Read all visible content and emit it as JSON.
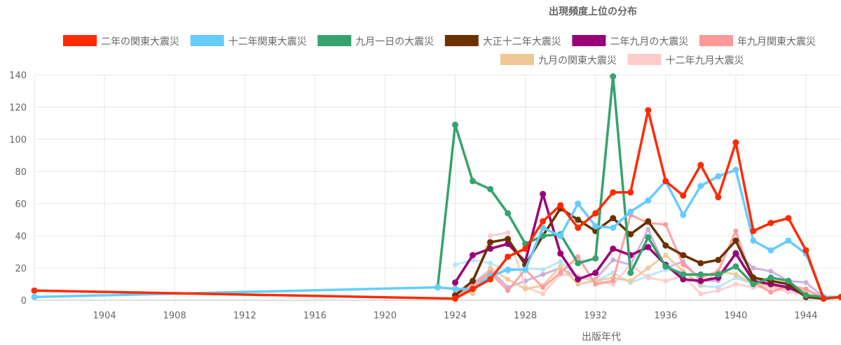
{
  "chart_data": {
    "type": "line",
    "title": "出現頻度上位の分布",
    "xlabel": "出版年代",
    "ylabel": "",
    "xlim": [
      1900,
      1946
    ],
    "ylim": [
      0,
      140
    ],
    "y_ticks": [
      0,
      20,
      40,
      60,
      80,
      100,
      120,
      140
    ],
    "x_ticks": [
      1904,
      1908,
      1912,
      1916,
      1920,
      1924,
      1928,
      1932,
      1936,
      1940,
      1944
    ],
    "grid": true,
    "legend_position": "top",
    "series": [
      {
        "name": "二年の関東大震災",
        "color": "#ff2a00",
        "points": [
          [
            1900,
            6
          ],
          [
            1924,
            1
          ],
          [
            1925,
            7
          ],
          [
            1926,
            13
          ],
          [
            1927,
            27
          ],
          [
            1928,
            32
          ],
          [
            1929,
            49
          ],
          [
            1930,
            59
          ],
          [
            1931,
            45
          ],
          [
            1932,
            54
          ],
          [
            1933,
            67
          ],
          [
            1934,
            67
          ],
          [
            1935,
            118
          ],
          [
            1936,
            74
          ],
          [
            1937,
            65
          ],
          [
            1938,
            84
          ],
          [
            1939,
            64
          ],
          [
            1940,
            98
          ],
          [
            1941,
            43
          ],
          [
            1942,
            48
          ],
          [
            1943,
            51
          ],
          [
            1944,
            31
          ],
          [
            1945,
            1
          ],
          [
            1946,
            2
          ]
        ]
      },
      {
        "name": "十二年関東大震災",
        "color": "#66ccff",
        "points": [
          [
            1900,
            2
          ],
          [
            1923,
            8
          ],
          [
            1924,
            7
          ],
          [
            1925,
            7
          ],
          [
            1926,
            15
          ],
          [
            1927,
            19
          ],
          [
            1928,
            19
          ],
          [
            1929,
            45
          ],
          [
            1930,
            40
          ],
          [
            1931,
            60
          ],
          [
            1932,
            46
          ],
          [
            1933,
            45
          ],
          [
            1934,
            55
          ],
          [
            1935,
            62
          ],
          [
            1936,
            74
          ],
          [
            1937,
            53
          ],
          [
            1938,
            71
          ],
          [
            1939,
            77
          ],
          [
            1940,
            81
          ],
          [
            1941,
            37
          ],
          [
            1942,
            31
          ],
          [
            1943,
            37
          ],
          [
            1944,
            29
          ],
          [
            1945,
            2
          ],
          [
            1946,
            2
          ]
        ]
      },
      {
        "name": "九月一日の大震災",
        "color": "#36a26d",
        "points": [
          [
            1923,
            8
          ],
          [
            1924,
            109
          ],
          [
            1925,
            74
          ],
          [
            1926,
            69
          ],
          [
            1927,
            54
          ],
          [
            1928,
            35
          ],
          [
            1929,
            40
          ],
          [
            1930,
            41
          ],
          [
            1931,
            23
          ],
          [
            1932,
            26
          ],
          [
            1933,
            139
          ],
          [
            1934,
            17
          ],
          [
            1935,
            39
          ],
          [
            1936,
            21
          ],
          [
            1937,
            16
          ],
          [
            1938,
            16
          ],
          [
            1939,
            16
          ],
          [
            1940,
            21
          ],
          [
            1941,
            10
          ],
          [
            1942,
            14
          ],
          [
            1943,
            12
          ],
          [
            1944,
            3
          ],
          [
            1945,
            2
          ],
          [
            1946,
            2
          ]
        ]
      },
      {
        "name": "大正十二年大震災",
        "color": "#6b3200",
        "points": [
          [
            1924,
            3
          ],
          [
            1925,
            12
          ],
          [
            1926,
            36
          ],
          [
            1927,
            38
          ],
          [
            1928,
            22
          ],
          [
            1929,
            40
          ],
          [
            1930,
            57
          ],
          [
            1931,
            50
          ],
          [
            1932,
            43
          ],
          [
            1933,
            51
          ],
          [
            1934,
            41
          ],
          [
            1935,
            49
          ],
          [
            1936,
            34
          ],
          [
            1937,
            28
          ],
          [
            1938,
            23
          ],
          [
            1939,
            25
          ],
          [
            1940,
            37
          ],
          [
            1941,
            14
          ],
          [
            1942,
            12
          ],
          [
            1943,
            10
          ],
          [
            1944,
            2
          ],
          [
            1945,
            1
          ],
          [
            1946,
            2
          ]
        ]
      },
      {
        "name": "二年九月の大震災",
        "color": "#990077",
        "points": [
          [
            1924,
            11
          ],
          [
            1925,
            28
          ],
          [
            1926,
            32
          ],
          [
            1927,
            35
          ],
          [
            1928,
            24
          ],
          [
            1929,
            66
          ],
          [
            1930,
            29
          ],
          [
            1931,
            13
          ],
          [
            1932,
            17
          ],
          [
            1933,
            32
          ],
          [
            1934,
            28
          ],
          [
            1935,
            33
          ],
          [
            1936,
            22
          ],
          [
            1937,
            13
          ],
          [
            1938,
            12
          ],
          [
            1939,
            14
          ],
          [
            1940,
            29
          ],
          [
            1941,
            12
          ],
          [
            1942,
            10
          ],
          [
            1943,
            8
          ],
          [
            1944,
            3
          ],
          [
            1945,
            1
          ],
          [
            1946,
            2
          ]
        ]
      },
      {
        "name": "年九月関東大震災",
        "color": "#ff9999",
        "points": [
          [
            1924,
            2
          ],
          [
            1925,
            9
          ],
          [
            1926,
            17
          ],
          [
            1927,
            6
          ],
          [
            1928,
            19
          ],
          [
            1929,
            8
          ],
          [
            1930,
            17
          ],
          [
            1931,
            27
          ],
          [
            1932,
            10
          ],
          [
            1933,
            12
          ],
          [
            1934,
            53
          ],
          [
            1935,
            48
          ],
          [
            1936,
            47
          ],
          [
            1937,
            22
          ],
          [
            1938,
            14
          ],
          [
            1939,
            18
          ],
          [
            1940,
            43
          ],
          [
            1941,
            11
          ],
          [
            1942,
            5
          ],
          [
            1943,
            9
          ],
          [
            1944,
            7
          ],
          [
            1945,
            1
          ],
          [
            1946,
            2
          ]
        ]
      },
      {
        "name": "九月の関東大震災",
        "color": "#f0c896",
        "points": [
          [
            1924,
            8
          ],
          [
            1925,
            4
          ],
          [
            1926,
            20
          ],
          [
            1927,
            13
          ],
          [
            1928,
            7
          ],
          [
            1929,
            9
          ],
          [
            1930,
            21
          ],
          [
            1931,
            10
          ],
          [
            1932,
            12
          ],
          [
            1933,
            14
          ],
          [
            1934,
            12
          ],
          [
            1935,
            20
          ],
          [
            1936,
            28
          ],
          [
            1937,
            18
          ],
          [
            1938,
            10
          ],
          [
            1939,
            18
          ],
          [
            1940,
            16
          ],
          [
            1941,
            10
          ],
          [
            1942,
            9
          ],
          [
            1943,
            7
          ],
          [
            1944,
            6
          ],
          [
            1945,
            2
          ],
          [
            1946,
            2
          ]
        ]
      },
      {
        "name": "十二年九月大震災",
        "color": "#ffcccc",
        "points": [
          [
            1924,
            5
          ],
          [
            1925,
            10
          ],
          [
            1926,
            40
          ],
          [
            1927,
            42
          ],
          [
            1928,
            8
          ],
          [
            1929,
            4
          ],
          [
            1930,
            16
          ],
          [
            1931,
            15
          ],
          [
            1932,
            12
          ],
          [
            1933,
            10
          ],
          [
            1934,
            22
          ],
          [
            1935,
            14
          ],
          [
            1936,
            12
          ],
          [
            1937,
            15
          ],
          [
            1938,
            4
          ],
          [
            1939,
            6
          ],
          [
            1940,
            10
          ],
          [
            1941,
            8
          ],
          [
            1942,
            8
          ],
          [
            1943,
            5
          ],
          [
            1944,
            3
          ],
          [
            1945,
            1
          ],
          [
            1946,
            2
          ]
        ]
      },
      {
        "name": "",
        "color": "#b4e4f8",
        "points": [
          [
            1924,
            22
          ],
          [
            1925,
            25
          ],
          [
            1926,
            23
          ],
          [
            1927,
            18
          ],
          [
            1928,
            20
          ],
          [
            1929,
            19
          ],
          [
            1930,
            24
          ],
          [
            1931,
            14
          ],
          [
            1932,
            12
          ],
          [
            1933,
            17
          ],
          [
            1934,
            11
          ],
          [
            1935,
            15
          ],
          [
            1936,
            19
          ],
          [
            1937,
            18
          ],
          [
            1938,
            9
          ],
          [
            1939,
            8
          ],
          [
            1940,
            14
          ],
          [
            1941,
            10
          ],
          [
            1942,
            9
          ],
          [
            1943,
            6
          ],
          [
            1944,
            4
          ],
          [
            1945,
            1
          ],
          [
            1946,
            2
          ]
        ]
      },
      {
        "name": "",
        "color": "#c9aede",
        "points": [
          [
            1924,
            4
          ],
          [
            1925,
            10
          ],
          [
            1926,
            19
          ],
          [
            1927,
            8
          ],
          [
            1928,
            12
          ],
          [
            1929,
            16
          ],
          [
            1930,
            20
          ],
          [
            1931,
            14
          ],
          [
            1932,
            13
          ],
          [
            1933,
            25
          ],
          [
            1934,
            22
          ],
          [
            1935,
            44
          ],
          [
            1936,
            20
          ],
          [
            1937,
            24
          ],
          [
            1938,
            12
          ],
          [
            1939,
            12
          ],
          [
            1940,
            30
          ],
          [
            1941,
            20
          ],
          [
            1942,
            18
          ],
          [
            1943,
            12
          ],
          [
            1944,
            11
          ],
          [
            1945,
            2
          ],
          [
            1946,
            2
          ]
        ]
      }
    ]
  }
}
